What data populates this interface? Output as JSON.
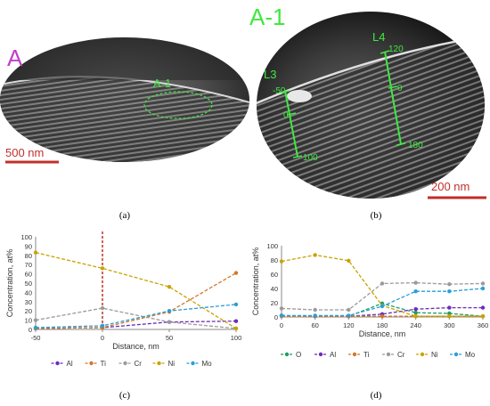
{
  "panels": {
    "a": {
      "caption": "(a)",
      "letter": "A",
      "region_label": "A-1",
      "scale_label": "500 nm"
    },
    "b": {
      "caption": "(b)",
      "title": "A-1",
      "scale_label": "200 nm",
      "lines": [
        {
          "name": "L3",
          "ticks": [
            "-50",
            "0",
            "100"
          ]
        },
        {
          "name": "L4",
          "ticks": [
            "120",
            "0",
            "180"
          ]
        }
      ]
    },
    "c": {
      "caption": "(c)"
    },
    "d": {
      "caption": "(d)"
    }
  },
  "colors": {
    "O": "#1e9e64",
    "Al": "#6a2cb8",
    "Ti": "#d2772a",
    "Cr": "#9a9a9a",
    "Ni": "#c9a300",
    "Mo": "#2a9ed8",
    "marker": "#c0302a",
    "green_text": "#3fe83f"
  },
  "chart_data": [
    {
      "type": "line",
      "ylabel": "Concentration, at%",
      "xlabel": "Distance, nm",
      "x": [
        -50,
        0,
        50,
        100
      ],
      "xticks": [
        "-50",
        "0",
        "50",
        "100"
      ],
      "xlim": [
        -50,
        100
      ],
      "ylim": [
        0,
        100
      ],
      "yticks": [
        "0",
        "10",
        "20",
        "30",
        "40",
        "50",
        "60",
        "70",
        "80",
        "90",
        "100"
      ],
      "grid": false,
      "legend": "bottom",
      "vline": 0,
      "series": [
        {
          "name": "Al",
          "values": [
            1,
            2,
            8,
            9
          ]
        },
        {
          "name": "Ti",
          "values": [
            1,
            2,
            19,
            61
          ]
        },
        {
          "name": "Cr",
          "values": [
            10,
            23,
            8,
            1
          ]
        },
        {
          "name": "Ni",
          "values": [
            83,
            66,
            46,
            1
          ]
        },
        {
          "name": "Mo",
          "values": [
            2,
            4,
            20,
            27
          ]
        }
      ]
    },
    {
      "type": "line",
      "ylabel": "Concentration, at%",
      "xlabel": "Distance, nm",
      "x": [
        0,
        60,
        120,
        180,
        240,
        300,
        360
      ],
      "xticks": [
        "0",
        "60",
        "120",
        "180",
        "240",
        "300",
        "360"
      ],
      "xlim": [
        0,
        360
      ],
      "ylim": [
        0,
        100
      ],
      "yticks": [
        "0",
        "20",
        "40",
        "60",
        "80",
        "100"
      ],
      "grid": false,
      "legend": "bottom",
      "series": [
        {
          "name": "O",
          "values": [
            2,
            1,
            1,
            19,
            6,
            5,
            1
          ]
        },
        {
          "name": "Al",
          "values": [
            2,
            1,
            1,
            4,
            11,
            13,
            13
          ]
        },
        {
          "name": "Ti",
          "values": [
            1,
            1,
            1,
            1,
            1,
            1,
            1
          ]
        },
        {
          "name": "Cr",
          "values": [
            12,
            10,
            10,
            47,
            48,
            46,
            47
          ]
        },
        {
          "name": "Ni",
          "values": [
            78,
            87,
            79,
            16,
            1,
            1,
            1
          ]
        },
        {
          "name": "Mo",
          "values": [
            2,
            2,
            2,
            15,
            36,
            36,
            40
          ]
        }
      ]
    }
  ]
}
